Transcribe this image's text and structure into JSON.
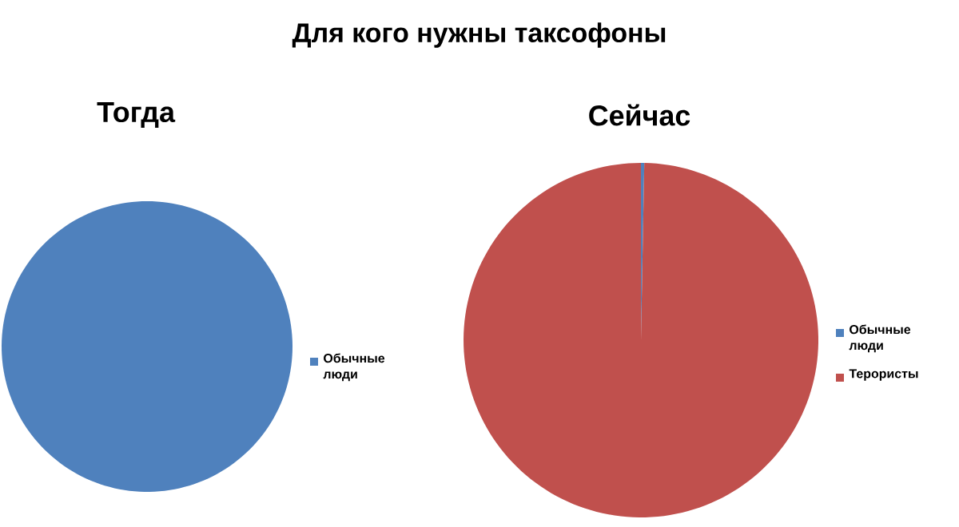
{
  "chart_data": [
    {
      "type": "other",
      "title": "Для кого нужны таксофоны"
    },
    {
      "type": "pie",
      "title": "Тогда",
      "categories": [
        "Обычные люди"
      ],
      "values": [
        100
      ],
      "colors": [
        "#4f81bd"
      ],
      "legend": "right"
    },
    {
      "type": "pie",
      "title": "Сейчас",
      "categories": [
        "Обычные люди",
        "Терористы"
      ],
      "values": [
        0.3,
        99.7
      ],
      "colors": [
        "#4f81bd",
        "#c0504d"
      ],
      "legend": "right"
    }
  ]
}
